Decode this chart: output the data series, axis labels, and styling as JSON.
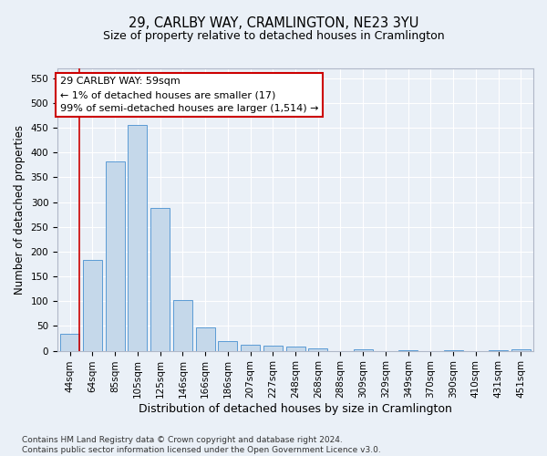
{
  "title1": "29, CARLBY WAY, CRAMLINGTON, NE23 3YU",
  "title2": "Size of property relative to detached houses in Cramlington",
  "xlabel": "Distribution of detached houses by size in Cramlington",
  "ylabel": "Number of detached properties",
  "categories": [
    "44sqm",
    "64sqm",
    "85sqm",
    "105sqm",
    "125sqm",
    "146sqm",
    "166sqm",
    "186sqm",
    "207sqm",
    "227sqm",
    "248sqm",
    "268sqm",
    "288sqm",
    "309sqm",
    "329sqm",
    "349sqm",
    "370sqm",
    "390sqm",
    "410sqm",
    "431sqm",
    "451sqm"
  ],
  "values": [
    35,
    183,
    383,
    455,
    288,
    103,
    48,
    20,
    13,
    10,
    8,
    5,
    0,
    3,
    0,
    2,
    0,
    2,
    0,
    1,
    3
  ],
  "bar_color": "#c5d8ea",
  "bar_edge_color": "#5b9bd5",
  "annotation_line1": "29 CARLBY WAY: 59sqm",
  "annotation_line2": "← 1% of detached houses are smaller (17)",
  "annotation_line3": "99% of semi-detached houses are larger (1,514) →",
  "annotation_box_facecolor": "#ffffff",
  "annotation_box_edgecolor": "#cc0000",
  "red_line_x": 0.43,
  "ylim": [
    0,
    570
  ],
  "yticks": [
    0,
    50,
    100,
    150,
    200,
    250,
    300,
    350,
    400,
    450,
    500,
    550
  ],
  "bg_color": "#eaf0f7",
  "plot_bg_color": "#eaf0f7",
  "grid_color": "#ffffff",
  "footer": "Contains HM Land Registry data © Crown copyright and database right 2024.\nContains public sector information licensed under the Open Government Licence v3.0.",
  "title1_fontsize": 10.5,
  "title2_fontsize": 9,
  "xlabel_fontsize": 9,
  "ylabel_fontsize": 8.5,
  "tick_fontsize": 7.5,
  "annot_fontsize": 8,
  "footer_fontsize": 6.5
}
